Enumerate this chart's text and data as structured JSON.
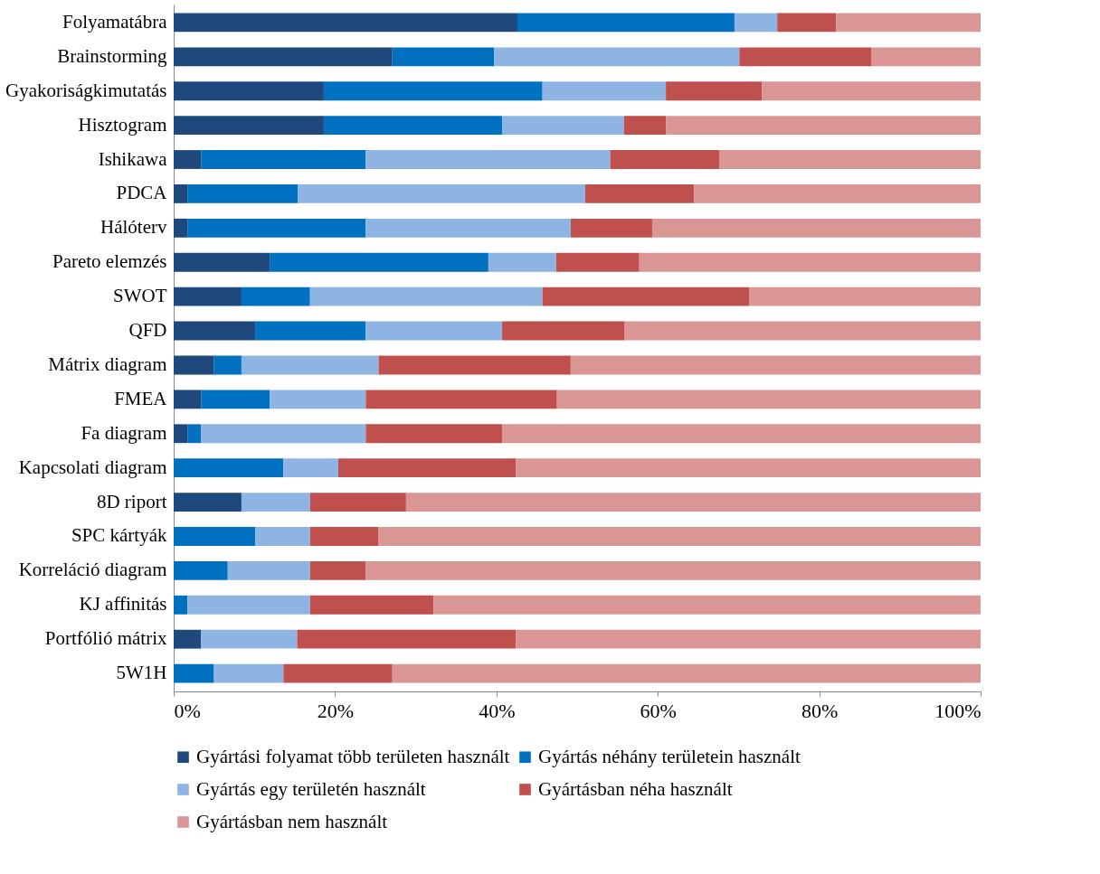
{
  "chart_data": {
    "type": "bar",
    "orientation": "horizontal",
    "stacked": true,
    "legend": "bottom",
    "grid": false,
    "categories": [
      "Folyamatábra",
      "Brainstorming",
      "Gyakoriságkimutatás",
      "Hisztogram",
      "Ishikawa",
      "PDCA",
      "Hálóterv",
      "Pareto elemzés",
      "SWOT",
      "QFD",
      "Mátrix diagram",
      "FMEA",
      "Fa diagram",
      "Kapcsolati diagram",
      "8D riport",
      "SPC kártyák",
      "Korreláció diagram",
      "KJ affinitás",
      "Portfólió mátrix",
      "5W1H"
    ],
    "xlim": [
      0,
      100
    ],
    "xticks": [
      {
        "value": 0,
        "label": "0%"
      },
      {
        "value": 20,
        "label": "20%"
      },
      {
        "value": 40,
        "label": "40%"
      },
      {
        "value": 60,
        "label": "60%"
      },
      {
        "value": 80,
        "label": "80%"
      },
      {
        "value": 100,
        "label": "100%"
      }
    ],
    "series": [
      {
        "name": "Gyártási folyamat több területen használt",
        "color": "#1f497d",
        "values": [
          42.6,
          27.1,
          18.6,
          18.6,
          3.4,
          1.7,
          1.7,
          11.9,
          8.4,
          10.1,
          5.0,
          3.4,
          1.7,
          0,
          8.4,
          0,
          0,
          0,
          3.4,
          0
        ]
      },
      {
        "name": "Gyártás néhány területein használt",
        "color": "#0070c0",
        "values": [
          26.9,
          12.6,
          27.1,
          22.1,
          20.4,
          13.7,
          22.1,
          27.1,
          8.5,
          13.7,
          3.4,
          8.5,
          1.7,
          13.6,
          0,
          10.1,
          6.7,
          1.7,
          0,
          5.0
        ]
      },
      {
        "name": "Gyártás egy területén használt",
        "color": "#8eb4e3",
        "values": [
          5.3,
          30.4,
          15.3,
          15.1,
          30.3,
          35.6,
          25.4,
          8.4,
          28.8,
          16.9,
          17.0,
          11.9,
          20.4,
          6.8,
          8.5,
          6.8,
          10.2,
          15.2,
          11.9,
          8.6
        ]
      },
      {
        "name": "Gyártásban néha használt",
        "color": "#c0504d",
        "values": [
          7.3,
          16.4,
          11.9,
          5.2,
          13.5,
          13.5,
          10.1,
          10.3,
          25.6,
          15.2,
          23.8,
          23.7,
          16.9,
          22.0,
          11.9,
          8.5,
          6.9,
          15.3,
          27.1,
          13.5
        ]
      },
      {
        "name": "Gyártásban nem használt",
        "color": "#d99694",
        "values": [
          17.9,
          13.5,
          27.1,
          39.0,
          32.4,
          35.5,
          40.7,
          42.3,
          28.7,
          44.1,
          50.8,
          52.5,
          59.3,
          57.6,
          71.2,
          74.6,
          76.2,
          67.8,
          57.6,
          72.9
        ]
      }
    ]
  }
}
